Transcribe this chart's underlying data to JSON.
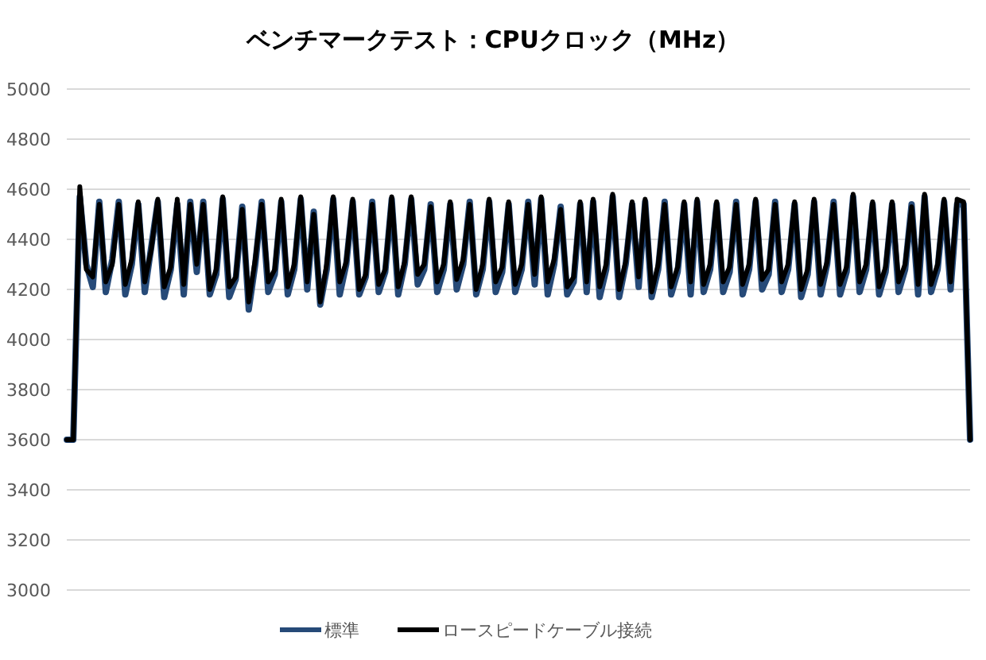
{
  "chart_data": {
    "type": "line",
    "title": "ベンチマークテスト：CPUクロック（MHz）",
    "categories": [
      null,
      null,
      null,
      null,
      null,
      null,
      null,
      null,
      null,
      null,
      null,
      null,
      null,
      null,
      null,
      null,
      null,
      null,
      null,
      null,
      null,
      null,
      null,
      null,
      null,
      null,
      null,
      null,
      null,
      null,
      null,
      null,
      null,
      null,
      null,
      null,
      null,
      null,
      null,
      null,
      null,
      null,
      null,
      null,
      null,
      null,
      null,
      null,
      null,
      null,
      null,
      null,
      null,
      null,
      null,
      null,
      null,
      null,
      null,
      null,
      null,
      null,
      null,
      null,
      null,
      null,
      null,
      null,
      null,
      null,
      null,
      null,
      null,
      null,
      null,
      null,
      null,
      null,
      null,
      null,
      null,
      null,
      null,
      null,
      null,
      null,
      null,
      null,
      null,
      null,
      null,
      null,
      null,
      null,
      null,
      null,
      null,
      null,
      null,
      null,
      null,
      null,
      null,
      null,
      null,
      null,
      null,
      null,
      null,
      null,
      null,
      null,
      null,
      null,
      null,
      null,
      null,
      null,
      null,
      null,
      null,
      null,
      null,
      null,
      null,
      null,
      null,
      null,
      null,
      null,
      null,
      null,
      null,
      null,
      null,
      null,
      null,
      null,
      null,
      null
    ],
    "series": [
      {
        "name": "標準",
        "color": "#264a78",
        "values": [
          3600,
          3600,
          4570,
          4300,
          4210,
          4550,
          4190,
          4320,
          4550,
          4180,
          4300,
          4540,
          4190,
          4370,
          4550,
          4170,
          4280,
          4540,
          4180,
          4550,
          4270,
          4550,
          4180,
          4260,
          4560,
          4170,
          4240,
          4530,
          4120,
          4300,
          4550,
          4190,
          4260,
          4550,
          4180,
          4280,
          4560,
          4200,
          4510,
          4140,
          4280,
          4560,
          4180,
          4300,
          4550,
          4180,
          4250,
          4550,
          4190,
          4270,
          4560,
          4180,
          4300,
          4560,
          4220,
          4280,
          4540,
          4190,
          4280,
          4540,
          4200,
          4300,
          4550,
          4180,
          4280,
          4550,
          4190,
          4270,
          4540,
          4190,
          4280,
          4550,
          4220,
          4560,
          4180,
          4300,
          4530,
          4180,
          4230,
          4540,
          4190,
          4550,
          4170,
          4280,
          4570,
          4170,
          4300,
          4540,
          4210,
          4550,
          4170,
          4280,
          4550,
          4180,
          4270,
          4540,
          4180,
          4550,
          4190,
          4280,
          4540,
          4190,
          4270,
          4550,
          4180,
          4280,
          4550,
          4200,
          4260,
          4550,
          4190,
          4280,
          4540,
          4170,
          4260,
          4550,
          4180,
          4300,
          4550,
          4180,
          4270,
          4570,
          4190,
          4280,
          4540,
          4180,
          4270,
          4540,
          4190,
          4280,
          4540,
          4180,
          4570,
          4190,
          4280,
          4550,
          4200,
          4540,
          4540,
          3600
        ]
      },
      {
        "name": "ロースピードケーブル接続",
        "color": "#000000",
        "values": [
          3600,
          3600,
          4610,
          4280,
          4250,
          4540,
          4230,
          4300,
          4540,
          4220,
          4320,
          4550,
          4230,
          4360,
          4560,
          4210,
          4290,
          4560,
          4220,
          4540,
          4300,
          4540,
          4200,
          4280,
          4570,
          4210,
          4250,
          4520,
          4150,
          4320,
          4540,
          4230,
          4280,
          4560,
          4210,
          4300,
          4570,
          4230,
          4500,
          4150,
          4300,
          4570,
          4230,
          4310,
          4560,
          4200,
          4260,
          4540,
          4220,
          4280,
          4570,
          4210,
          4310,
          4570,
          4260,
          4300,
          4530,
          4230,
          4300,
          4550,
          4240,
          4320,
          4540,
          4200,
          4300,
          4560,
          4230,
          4290,
          4550,
          4220,
          4300,
          4540,
          4260,
          4570,
          4230,
          4320,
          4520,
          4210,
          4250,
          4550,
          4230,
          4560,
          4210,
          4300,
          4580,
          4200,
          4310,
          4550,
          4250,
          4560,
          4190,
          4300,
          4540,
          4210,
          4290,
          4550,
          4230,
          4560,
          4220,
          4300,
          4550,
          4230,
          4290,
          4540,
          4220,
          4300,
          4560,
          4240,
          4280,
          4540,
          4230,
          4300,
          4550,
          4200,
          4280,
          4560,
          4220,
          4310,
          4540,
          4220,
          4290,
          4580,
          4230,
          4300,
          4550,
          4210,
          4290,
          4550,
          4230,
          4300,
          4530,
          4220,
          4580,
          4220,
          4300,
          4560,
          4230,
          4560,
          4550,
          3600
        ]
      }
    ],
    "ylim": [
      3000,
      5000
    ],
    "yticks": [
      3000,
      3200,
      3400,
      3600,
      3800,
      4000,
      4200,
      4400,
      4600,
      4800,
      5000
    ],
    "grid": "y",
    "legend": "bottom",
    "tick_labels": "y",
    "line_style": "solid",
    "marker": "none"
  }
}
